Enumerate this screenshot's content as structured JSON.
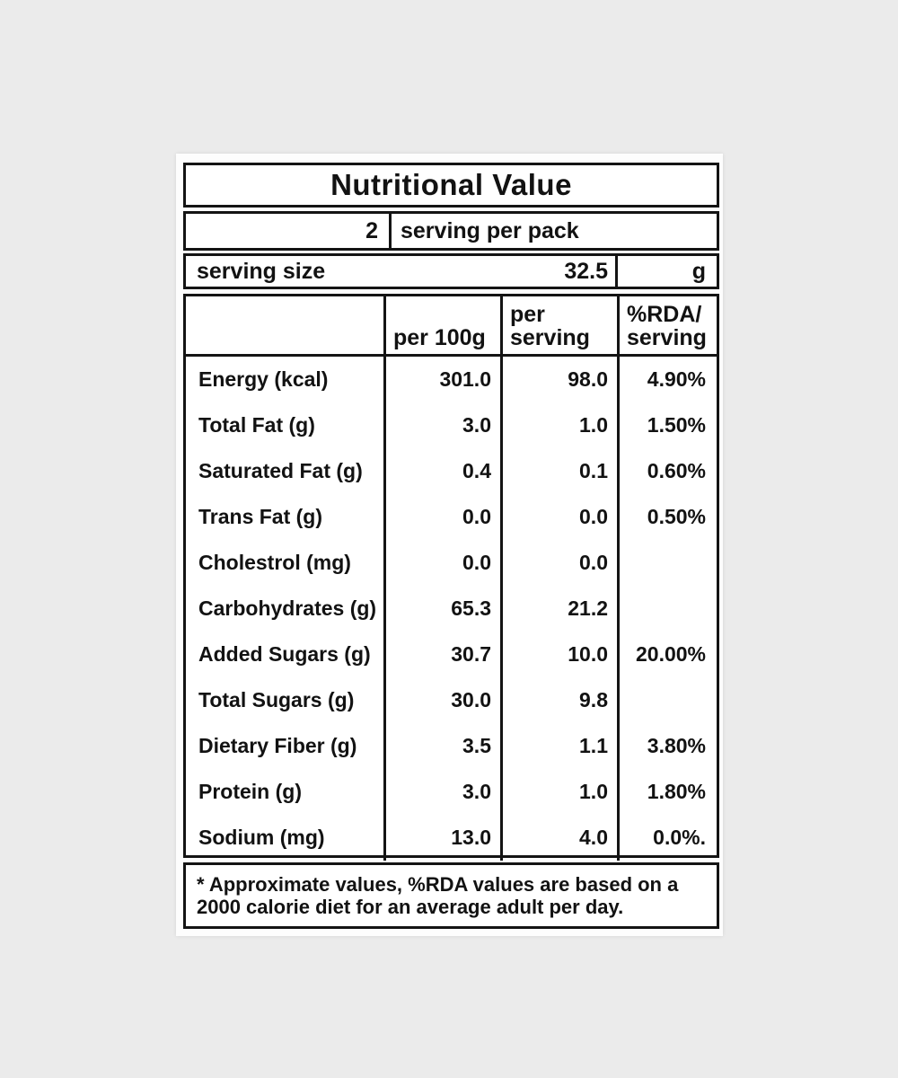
{
  "label": {
    "title": "Nutritional Value",
    "servings_per_pack": {
      "count": "2",
      "text": "serving per pack"
    },
    "serving_size": {
      "name": "serving size",
      "value": "32.5",
      "unit": "g"
    },
    "columns": {
      "per_100g": "per 100g",
      "per_serving_line1": "per",
      "per_serving_line2": "serving",
      "rda_line1": "%RDA/",
      "rda_line2": "serving"
    },
    "rows": [
      {
        "name": "Energy (kcal)",
        "per_100g": "301.0",
        "per_serving": "98.0",
        "rda": "4.90%"
      },
      {
        "name": "Total Fat (g)",
        "per_100g": "3.0",
        "per_serving": "1.0",
        "rda": "1.50%"
      },
      {
        "name": "Saturated Fat (g)",
        "per_100g": "0.4",
        "per_serving": "0.1",
        "rda": "0.60%"
      },
      {
        "name": "Trans Fat (g)",
        "per_100g": "0.0",
        "per_serving": "0.0",
        "rda": "0.50%"
      },
      {
        "name": "Cholestrol (mg)",
        "per_100g": "0.0",
        "per_serving": "0.0",
        "rda": ""
      },
      {
        "name": "Carbohydrates (g)",
        "per_100g": "65.3",
        "per_serving": "21.2",
        "rda": ""
      },
      {
        "name": "Added Sugars (g)",
        "per_100g": "30.7",
        "per_serving": "10.0",
        "rda": "20.00%"
      },
      {
        "name": "Total Sugars (g)",
        "per_100g": "30.0",
        "per_serving": "9.8",
        "rda": ""
      },
      {
        "name": "Dietary Fiber (g)",
        "per_100g": "3.5",
        "per_serving": "1.1",
        "rda": "3.80%"
      },
      {
        "name": "Protein (g)",
        "per_100g": "3.0",
        "per_serving": "1.0",
        "rda": "1.80%"
      },
      {
        "name": "Sodium (mg)",
        "per_100g": "13.0",
        "per_serving": "4.0",
        "rda": "0.0%."
      }
    ],
    "footnote_line1": "* Approximate values, %RDA values are based on a",
    "footnote_line2": "2000 calorie diet for an average adult per day.",
    "colors": {
      "background": "#ebebeb",
      "card": "#fdfdfd",
      "border": "#141414",
      "text": "#121212"
    }
  }
}
